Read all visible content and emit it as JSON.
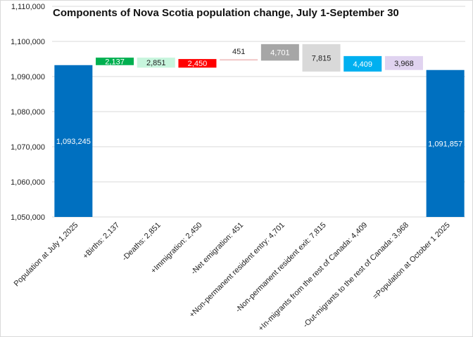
{
  "chart_data": {
    "type": "waterfall",
    "title": "Components of Nova Scotia population change, July 1-September 30",
    "xlabel": "",
    "ylabel": "",
    "ylim": [
      1050000,
      1110000
    ],
    "y_ticks": [
      1050000,
      1060000,
      1070000,
      1080000,
      1090000,
      1100000,
      1110000
    ],
    "y_tick_labels": [
      "1,050,000",
      "1,060,000",
      "1,070,000",
      "1,080,000",
      "1,090,000",
      "1,100,000",
      "1,110,000"
    ],
    "grid": true,
    "legend": "none",
    "categories": [
      "Population at July 1,2025",
      "+Births: 2,137",
      "-Deaths: 2,851",
      "+Immigration: 2,450",
      "-Net emigration: 451",
      "+Non-permanent resident entry: 4,701",
      "-Non-permanent resident exit: 7,815",
      "+In-migrants from the rest of Canada: 4,409",
      "-Out-migrants to the rest of Canada: 3,968",
      "=Population at October 1 2025"
    ],
    "bars": [
      {
        "kind": "total",
        "value": 1093245,
        "label": "1,093,245",
        "color": "#0070C0",
        "label_color": "#ffffff"
      },
      {
        "kind": "delta",
        "value": 2137,
        "label": "2,137",
        "color": "#00B050",
        "label_color": "#ffffff"
      },
      {
        "kind": "delta",
        "value": -2851,
        "label": "2,851",
        "color": "#C7F5DD",
        "label_color": "#222222"
      },
      {
        "kind": "delta",
        "value": 2450,
        "label": "2,450",
        "color": "#FF0000",
        "label_color": "#ffffff"
      },
      {
        "kind": "delta",
        "value": -451,
        "label": "451",
        "color": "#F2CCCC",
        "label_color": "#222222"
      },
      {
        "kind": "delta",
        "value": 4701,
        "label": "4,701",
        "color": "#A6A6A6",
        "label_color": "#ffffff"
      },
      {
        "kind": "delta",
        "value": -7815,
        "label": "7,815",
        "color": "#D9D9D9",
        "label_color": "#222222"
      },
      {
        "kind": "delta",
        "value": 4409,
        "label": "4,409",
        "color": "#00B0F0",
        "label_color": "#ffffff"
      },
      {
        "kind": "delta",
        "value": -3968,
        "label": "3,968",
        "color": "#E0D3F0",
        "label_color": "#222222"
      },
      {
        "kind": "total",
        "value": 1091857,
        "label": "1,091,857",
        "color": "#0070C0",
        "label_color": "#ffffff"
      }
    ]
  }
}
